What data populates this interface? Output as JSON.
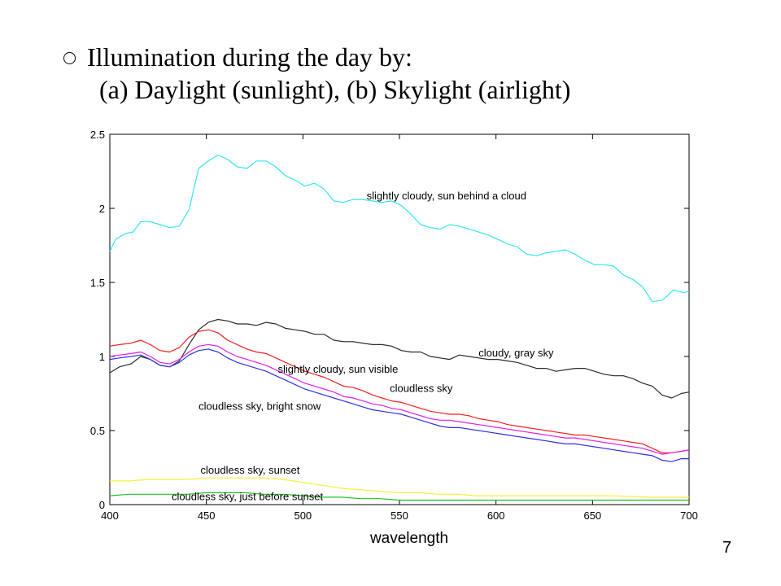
{
  "slide": {
    "bullet_symbol": "○",
    "title_line1": "Illumination during the day by:",
    "title_line2": "(a) Daylight (sunlight), (b) Skylight (airlight)",
    "page_number": "7"
  },
  "chart_data": {
    "type": "line",
    "title": "",
    "xlabel": "wavelength",
    "ylabel": "",
    "xlim": [
      400,
      700
    ],
    "ylim": [
      0,
      2.5
    ],
    "x_ticks": [
      400,
      450,
      500,
      550,
      600,
      650,
      700
    ],
    "y_ticks": [
      0,
      0.5,
      1,
      1.5,
      2,
      2.5
    ],
    "grid": false,
    "series": [
      {
        "name": "slightly cloudy, sun behind a cloud",
        "color": "#33e6f0",
        "x": [
          400,
          403,
          408,
          412,
          416,
          421,
          426,
          431,
          436,
          441,
          446,
          451,
          456,
          461,
          466,
          471,
          476,
          481,
          486,
          491,
          496,
          501,
          506,
          511,
          516,
          521,
          526,
          531,
          536,
          541,
          546,
          551,
          556,
          561,
          566,
          571,
          576,
          581,
          586,
          591,
          596,
          601,
          606,
          611,
          616,
          621,
          626,
          631,
          636,
          641,
          646,
          651,
          656,
          661,
          666,
          671,
          676,
          681,
          686,
          688,
          692,
          697,
          700
        ],
        "y": [
          1.71,
          1.79,
          1.83,
          1.84,
          1.91,
          1.91,
          1.89,
          1.87,
          1.88,
          1.99,
          2.27,
          2.32,
          2.36,
          2.33,
          2.28,
          2.27,
          2.32,
          2.32,
          2.28,
          2.22,
          2.19,
          2.15,
          2.17,
          2.13,
          2.05,
          2.04,
          2.06,
          2.06,
          2.05,
          2.04,
          2.05,
          2.02,
          1.96,
          1.89,
          1.87,
          1.86,
          1.89,
          1.88,
          1.86,
          1.84,
          1.82,
          1.79,
          1.76,
          1.74,
          1.69,
          1.68,
          1.7,
          1.71,
          1.72,
          1.69,
          1.65,
          1.62,
          1.62,
          1.61,
          1.55,
          1.52,
          1.47,
          1.37,
          1.38,
          1.4,
          1.45,
          1.43,
          1.44
        ]
      },
      {
        "name": "cloudy, gray sky",
        "color": "#2b2b2b",
        "x": [
          400,
          405,
          411,
          416,
          421,
          426,
          431,
          436,
          441,
          446,
          451,
          456,
          461,
          466,
          471,
          476,
          481,
          486,
          491,
          496,
          501,
          506,
          511,
          516,
          521,
          526,
          531,
          536,
          541,
          546,
          551,
          556,
          561,
          566,
          571,
          576,
          581,
          586,
          591,
          596,
          601,
          606,
          611,
          616,
          621,
          626,
          631,
          636,
          641,
          646,
          651,
          656,
          661,
          666,
          671,
          676,
          681,
          686,
          691,
          696,
          700
        ],
        "y": [
          0.89,
          0.93,
          0.95,
          1.0,
          0.98,
          0.94,
          0.93,
          0.97,
          1.08,
          1.18,
          1.23,
          1.25,
          1.24,
          1.22,
          1.22,
          1.21,
          1.23,
          1.22,
          1.19,
          1.18,
          1.17,
          1.15,
          1.15,
          1.11,
          1.1,
          1.1,
          1.09,
          1.08,
          1.08,
          1.07,
          1.04,
          1.03,
          1.03,
          1.0,
          0.99,
          0.98,
          1.01,
          1.0,
          0.99,
          0.98,
          0.98,
          0.97,
          0.96,
          0.94,
          0.92,
          0.92,
          0.9,
          0.91,
          0.92,
          0.92,
          0.9,
          0.88,
          0.87,
          0.87,
          0.85,
          0.82,
          0.8,
          0.74,
          0.72,
          0.75,
          0.76
        ]
      },
      {
        "name": "cloudless sky",
        "color": "#ee2222",
        "x": [
          400,
          405,
          411,
          416,
          421,
          426,
          431,
          436,
          441,
          446,
          451,
          456,
          461,
          466,
          471,
          476,
          481,
          486,
          491,
          496,
          501,
          506,
          511,
          516,
          521,
          526,
          531,
          536,
          541,
          546,
          551,
          556,
          561,
          566,
          571,
          576,
          581,
          586,
          591,
          596,
          601,
          606,
          611,
          616,
          621,
          626,
          631,
          636,
          641,
          646,
          651,
          656,
          661,
          666,
          671,
          676,
          681,
          686,
          691,
          696,
          700
        ],
        "y": [
          1.07,
          1.08,
          1.09,
          1.11,
          1.08,
          1.04,
          1.03,
          1.06,
          1.13,
          1.17,
          1.18,
          1.16,
          1.11,
          1.08,
          1.05,
          1.03,
          1.02,
          0.99,
          0.96,
          0.93,
          0.9,
          0.88,
          0.86,
          0.83,
          0.8,
          0.79,
          0.77,
          0.74,
          0.72,
          0.7,
          0.69,
          0.67,
          0.65,
          0.63,
          0.62,
          0.61,
          0.61,
          0.6,
          0.58,
          0.57,
          0.56,
          0.54,
          0.53,
          0.52,
          0.51,
          0.5,
          0.49,
          0.48,
          0.47,
          0.47,
          0.46,
          0.45,
          0.44,
          0.43,
          0.42,
          0.41,
          0.38,
          0.35,
          0.35,
          0.36,
          0.37
        ]
      },
      {
        "name": "slightly cloudy, sun visible",
        "color": "#e020e0",
        "x": [
          400,
          405,
          411,
          416,
          421,
          426,
          431,
          436,
          441,
          446,
          451,
          456,
          461,
          466,
          471,
          476,
          481,
          486,
          491,
          496,
          501,
          506,
          511,
          516,
          521,
          526,
          531,
          536,
          541,
          546,
          551,
          556,
          561,
          566,
          571,
          576,
          581,
          586,
          591,
          596,
          601,
          606,
          611,
          616,
          621,
          626,
          631,
          636,
          641,
          646,
          651,
          656,
          661,
          666,
          671,
          676,
          681,
          686,
          691,
          696,
          700
        ],
        "y": [
          1.0,
          1.01,
          1.02,
          1.03,
          1.0,
          0.96,
          0.95,
          0.98,
          1.03,
          1.07,
          1.08,
          1.07,
          1.03,
          1.0,
          0.98,
          0.96,
          0.94,
          0.91,
          0.88,
          0.85,
          0.82,
          0.8,
          0.78,
          0.76,
          0.73,
          0.72,
          0.7,
          0.68,
          0.67,
          0.65,
          0.64,
          0.62,
          0.6,
          0.58,
          0.57,
          0.57,
          0.56,
          0.55,
          0.54,
          0.53,
          0.52,
          0.51,
          0.5,
          0.49,
          0.48,
          0.47,
          0.46,
          0.45,
          0.45,
          0.44,
          0.43,
          0.42,
          0.41,
          0.4,
          0.39,
          0.38,
          0.36,
          0.34,
          0.35,
          0.36,
          0.37
        ]
      },
      {
        "name": "cloudless sky, bright snow",
        "color": "#3030e0",
        "x": [
          400,
          405,
          411,
          416,
          421,
          426,
          431,
          436,
          441,
          446,
          451,
          456,
          461,
          466,
          471,
          476,
          481,
          486,
          491,
          496,
          501,
          506,
          511,
          516,
          521,
          526,
          531,
          536,
          541,
          546,
          551,
          556,
          561,
          566,
          571,
          576,
          581,
          586,
          591,
          596,
          601,
          606,
          611,
          616,
          621,
          626,
          631,
          636,
          641,
          646,
          651,
          656,
          661,
          666,
          671,
          676,
          681,
          686,
          691,
          696,
          700
        ],
        "y": [
          0.98,
          0.99,
          1.0,
          1.01,
          0.98,
          0.94,
          0.93,
          0.96,
          1.01,
          1.04,
          1.05,
          1.03,
          0.99,
          0.96,
          0.94,
          0.92,
          0.9,
          0.87,
          0.84,
          0.81,
          0.78,
          0.76,
          0.74,
          0.72,
          0.7,
          0.68,
          0.66,
          0.64,
          0.63,
          0.62,
          0.61,
          0.59,
          0.57,
          0.55,
          0.53,
          0.52,
          0.52,
          0.51,
          0.5,
          0.49,
          0.48,
          0.47,
          0.46,
          0.45,
          0.44,
          0.43,
          0.42,
          0.41,
          0.41,
          0.4,
          0.39,
          0.38,
          0.37,
          0.36,
          0.35,
          0.34,
          0.33,
          0.3,
          0.29,
          0.31,
          0.31
        ]
      },
      {
        "name": "cloudless sky, sunset",
        "color": "#f2f23a",
        "x": [
          400,
          410,
          420,
          430,
          440,
          450,
          460,
          470,
          480,
          490,
          500,
          510,
          520,
          530,
          540,
          550,
          560,
          570,
          580,
          590,
          600,
          620,
          640,
          660,
          680,
          700
        ],
        "y": [
          0.16,
          0.16,
          0.17,
          0.17,
          0.17,
          0.18,
          0.18,
          0.18,
          0.18,
          0.17,
          0.15,
          0.13,
          0.11,
          0.1,
          0.09,
          0.08,
          0.08,
          0.07,
          0.07,
          0.06,
          0.06,
          0.06,
          0.06,
          0.06,
          0.05,
          0.05
        ]
      },
      {
        "name": "cloudless sky, just before sunset",
        "color": "#22c022",
        "x": [
          400,
          410,
          420,
          430,
          440,
          450,
          460,
          470,
          480,
          490,
          500,
          510,
          520,
          530,
          540,
          550,
          560,
          570,
          580,
          590,
          600,
          620,
          640,
          660,
          680,
          700
        ],
        "y": [
          0.06,
          0.07,
          0.07,
          0.07,
          0.07,
          0.08,
          0.08,
          0.08,
          0.07,
          0.07,
          0.06,
          0.05,
          0.05,
          0.04,
          0.04,
          0.03,
          0.03,
          0.03,
          0.03,
          0.03,
          0.03,
          0.03,
          0.03,
          0.03,
          0.03,
          0.03
        ]
      }
    ],
    "annotations": [
      {
        "text": "slightly cloudy, sun behind a cloud",
        "x": 533,
        "y": 2.06
      },
      {
        "text": "cloudy, gray sky",
        "x": 591,
        "y": 1.0
      },
      {
        "text": "slightly cloudy, sun visible",
        "x": 487,
        "y": 0.89
      },
      {
        "text": "cloudless sky",
        "x": 545,
        "y": 0.76
      },
      {
        "text": "cloudless sky, bright snow",
        "x": 446,
        "y": 0.64
      },
      {
        "text": "cloudless sky, sunset",
        "x": 447,
        "y": 0.21
      },
      {
        "text": "cloudless sky, just before sunset",
        "x": 432,
        "y": 0.03
      }
    ]
  }
}
